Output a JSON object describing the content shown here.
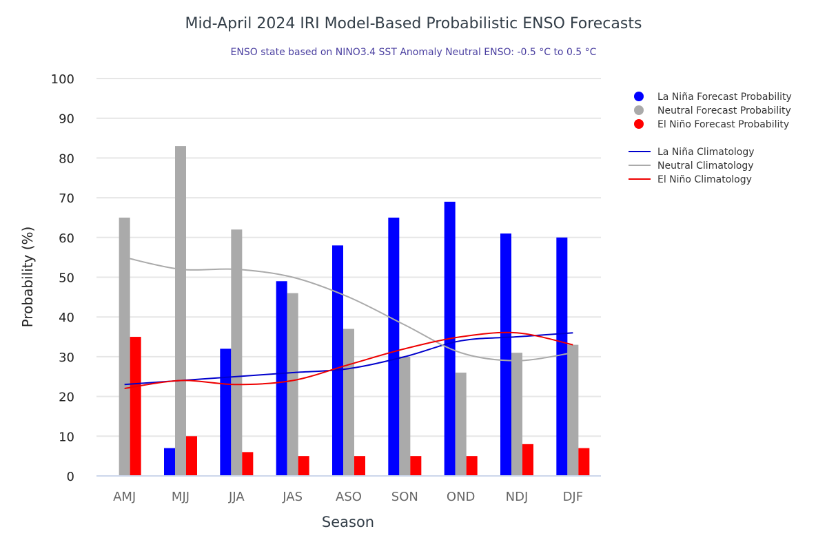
{
  "chart_data": {
    "type": "bar",
    "title": "Mid-April 2024 IRI Model-Based Probabilistic ENSO Forecasts",
    "subtitle": "ENSO state based on NINO3.4 SST Anomaly Neutral ENSO: -0.5 °C to 0.5 °C",
    "xlabel": "Season",
    "ylabel": "Probability (%)",
    "ylim": [
      0,
      100
    ],
    "yticks": [
      0,
      10,
      20,
      30,
      40,
      50,
      60,
      70,
      80,
      90,
      100
    ],
    "grid": true,
    "legend_position": "right",
    "categories": [
      "AMJ",
      "MJJ",
      "JJA",
      "JAS",
      "ASO",
      "SON",
      "OND",
      "NDJ",
      "DJF"
    ],
    "series": [
      {
        "name": "La Niña Forecast Probability",
        "kind": "bar",
        "color": "#0000ff",
        "values": [
          0,
          7,
          32,
          49,
          58,
          65,
          69,
          61,
          60
        ]
      },
      {
        "name": "Neutral Forecast Probability",
        "kind": "bar",
        "color": "#aaaaaa",
        "values": [
          65,
          83,
          62,
          46,
          37,
          30,
          26,
          31,
          33
        ]
      },
      {
        "name": "El Niño Forecast Probability",
        "kind": "bar",
        "color": "#ff0000",
        "values": [
          35,
          10,
          6,
          5,
          5,
          5,
          5,
          8,
          7
        ]
      },
      {
        "name": "La Niña Climatology",
        "kind": "line",
        "color": "#0000cc",
        "values": [
          23,
          24,
          25,
          26,
          27,
          30,
          34,
          35,
          36
        ]
      },
      {
        "name": "Neutral Climatology",
        "kind": "line",
        "color": "#aaaaaa",
        "values": [
          55,
          52,
          52,
          50,
          45,
          38,
          31,
          29,
          31
        ]
      },
      {
        "name": "El Niño Climatology",
        "kind": "line",
        "color": "#ee0000",
        "values": [
          22,
          24,
          23,
          24,
          28,
          32,
          35,
          36,
          33
        ]
      }
    ]
  }
}
